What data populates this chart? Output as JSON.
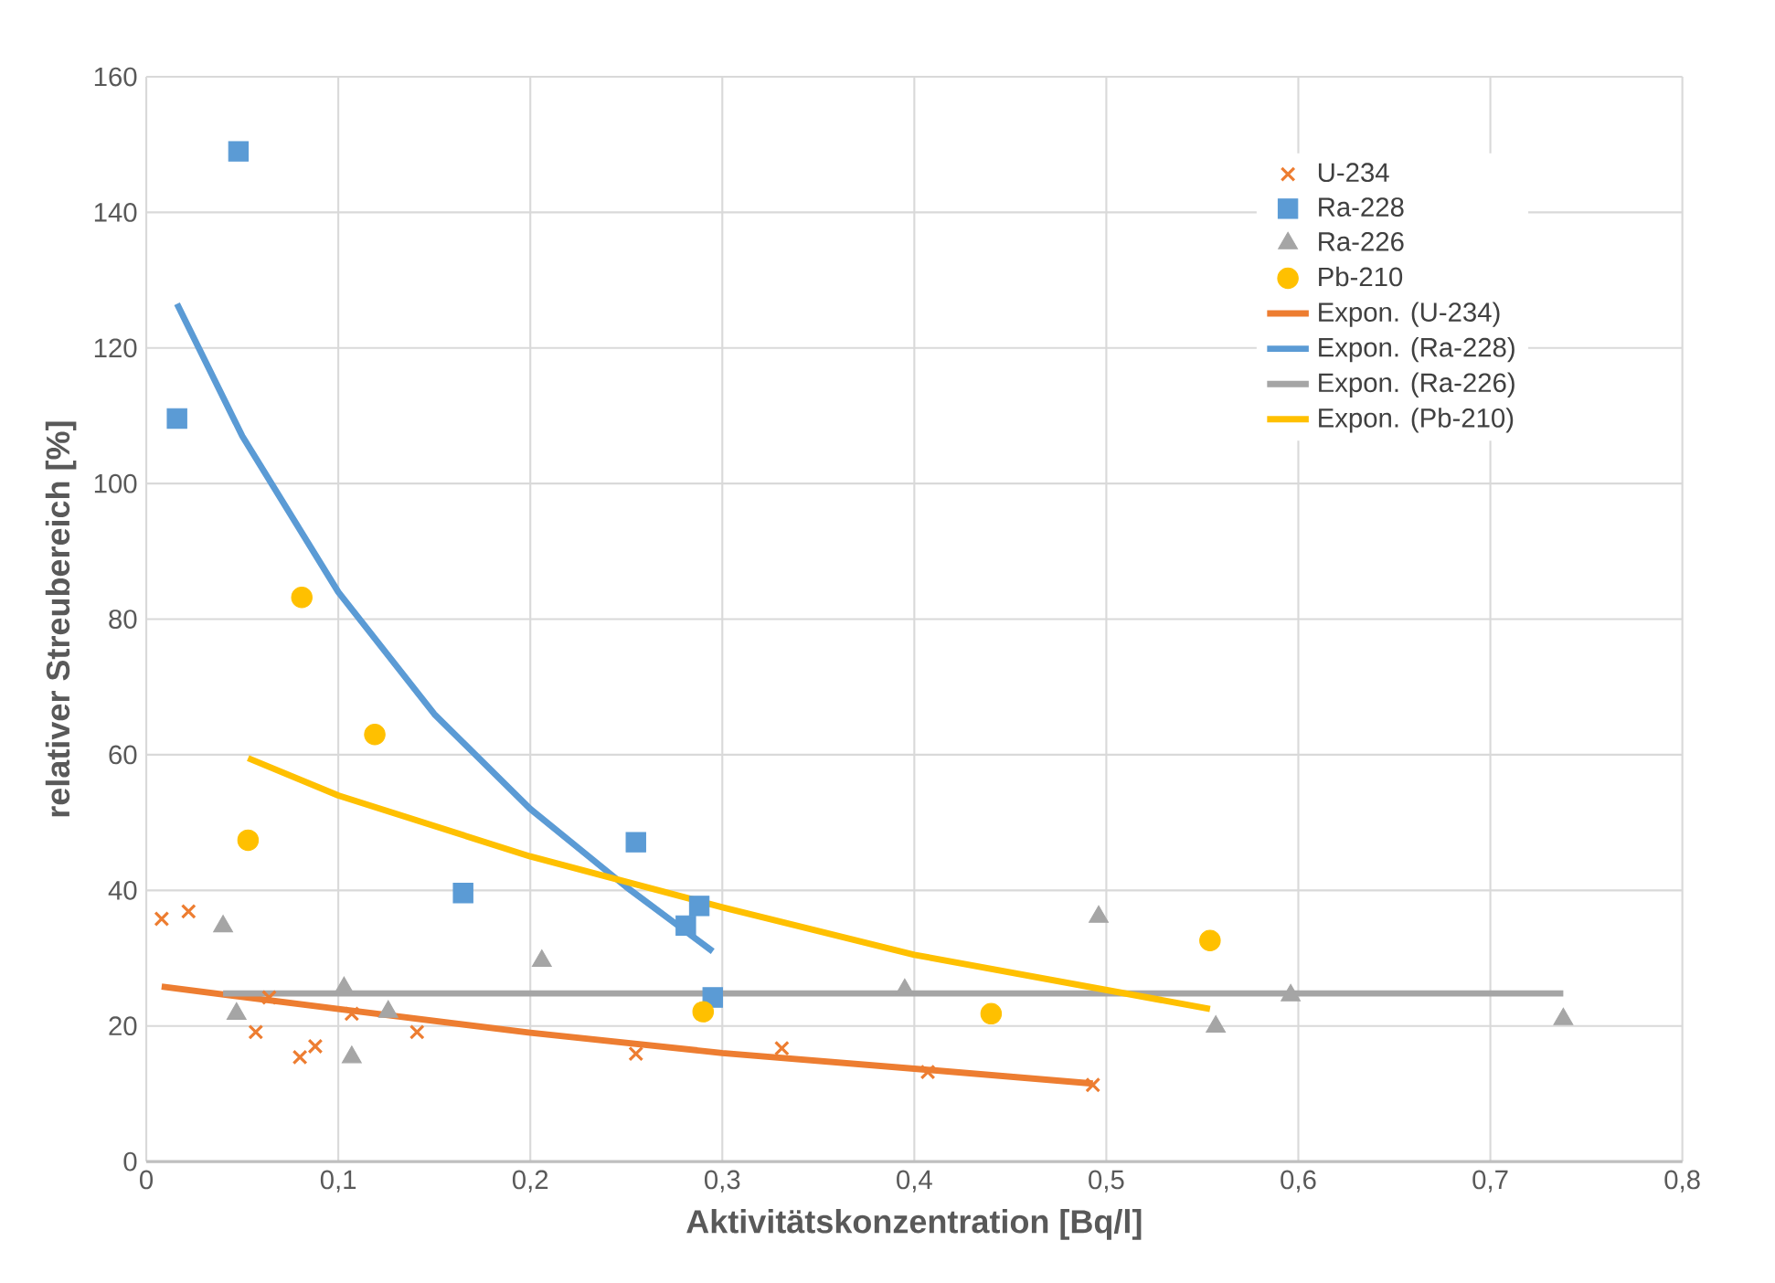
{
  "chart_data": {
    "type": "scatter",
    "xlabel": "Aktivitätskonzentration [Bq/l]",
    "ylabel": "relativer Streubereich [%]",
    "xlim": [
      0,
      0.8
    ],
    "ylim": [
      0,
      160
    ],
    "xticks": [
      {
        "value": 0,
        "label": "0"
      },
      {
        "value": 0.1,
        "label": "0,1"
      },
      {
        "value": 0.2,
        "label": "0,2"
      },
      {
        "value": 0.3,
        "label": "0,3"
      },
      {
        "value": 0.4,
        "label": "0,4"
      },
      {
        "value": 0.5,
        "label": "0,5"
      },
      {
        "value": 0.6,
        "label": "0,6"
      },
      {
        "value": 0.7,
        "label": "0,7"
      },
      {
        "value": 0.8,
        "label": "0,8"
      }
    ],
    "yticks": [
      0,
      20,
      40,
      60,
      80,
      100,
      120,
      140,
      160
    ],
    "grid": true,
    "legend": "top right",
    "series": [
      {
        "name": "U-234",
        "color": "#ed7d31",
        "marker": "cross",
        "x": [
          0.008,
          0.022,
          0.057,
          0.064,
          0.08,
          0.088,
          0.107,
          0.141,
          0.255,
          0.331,
          0.407,
          0.493
        ],
        "values": [
          35.8,
          36.9,
          19.1,
          24.2,
          15.4,
          17.0,
          21.8,
          19.1,
          15.9,
          16.7,
          13.2,
          11.3
        ]
      },
      {
        "name": "Ra-228",
        "color": "#5b9bd5",
        "marker": "square",
        "x": [
          0.016,
          0.048,
          0.165,
          0.255,
          0.281,
          0.288,
          0.295
        ],
        "values": [
          109.6,
          149,
          39.6,
          47.1,
          34.8,
          37.7,
          24.2
        ]
      },
      {
        "name": "Ra-226",
        "color": "#a5a5a5",
        "marker": "triangle",
        "x": [
          0.04,
          0.047,
          0.103,
          0.107,
          0.126,
          0.206,
          0.395,
          0.496,
          0.557,
          0.596,
          0.738
        ],
        "values": [
          34.7,
          21.8,
          25.6,
          15.4,
          22.1,
          29.6,
          25.3,
          36.1,
          19.9,
          24.5,
          21.0
        ]
      },
      {
        "name": "Pb-210",
        "color": "#ffc000",
        "marker": "circle",
        "x": [
          0.053,
          0.081,
          0.119,
          0.29,
          0.44,
          0.554
        ],
        "values": [
          47.4,
          83.2,
          63.0,
          22.1,
          21.8,
          32.6
        ]
      },
      {
        "name": "Expon. (U-234)",
        "type": "line",
        "color": "#ed7d31",
        "marker": "none",
        "x": [
          0.008,
          0.1,
          0.2,
          0.3,
          0.4,
          0.493
        ],
        "values": [
          25.8,
          22.5,
          19,
          16,
          13.7,
          11.5
        ]
      },
      {
        "name": "Expon. (Ra-228)",
        "type": "line",
        "color": "#5b9bd5",
        "marker": "none",
        "x": [
          0.016,
          0.05,
          0.1,
          0.15,
          0.2,
          0.25,
          0.295
        ],
        "values": [
          126.5,
          107,
          84,
          66,
          52,
          40.5,
          31
        ]
      },
      {
        "name": "Expon. (Ra-226)",
        "type": "line",
        "color": "#a5a5a5",
        "marker": "none",
        "x": [
          0.04,
          0.738
        ],
        "values": [
          24.8,
          24.8
        ]
      },
      {
        "name": "Expon. (Pb-210)",
        "type": "line",
        "color": "#ffc000",
        "marker": "none",
        "x": [
          0.053,
          0.1,
          0.2,
          0.3,
          0.4,
          0.554
        ],
        "values": [
          59.5,
          54,
          45,
          37.5,
          30.5,
          22.5
        ]
      }
    ]
  }
}
